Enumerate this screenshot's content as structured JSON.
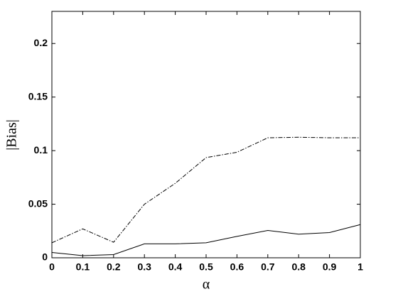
{
  "chart_data": {
    "type": "line",
    "x_label": "α",
    "y_label": "|Bias|",
    "x": [
      0,
      0.1,
      0.2,
      0.3,
      0.4,
      0.5,
      0.6,
      0.7,
      0.8,
      0.9,
      1
    ],
    "series": [
      {
        "color": "#000000",
        "dash": "dashdot",
        "values": [
          0.014,
          0.027,
          0.0145,
          0.05,
          0.0695,
          0.0935,
          0.0985,
          0.112,
          0.1125,
          0.112,
          0.112
        ]
      },
      {
        "color": "#000000",
        "dash": "solid",
        "values": [
          0.005,
          0.002,
          0.003,
          0.013,
          0.013,
          0.014,
          0.02,
          0.0255,
          0.022,
          0.0235,
          0.031
        ]
      }
    ],
    "xlim": [
      0,
      1
    ],
    "ylim": [
      0,
      0.23
    ],
    "xticks": [
      0,
      0.1,
      0.2,
      0.3,
      0.4,
      0.5,
      0.6,
      0.7,
      0.8,
      0.9,
      1
    ],
    "yticks": [
      0,
      0.05,
      0.1,
      0.15,
      0.2
    ],
    "grid": false
  }
}
